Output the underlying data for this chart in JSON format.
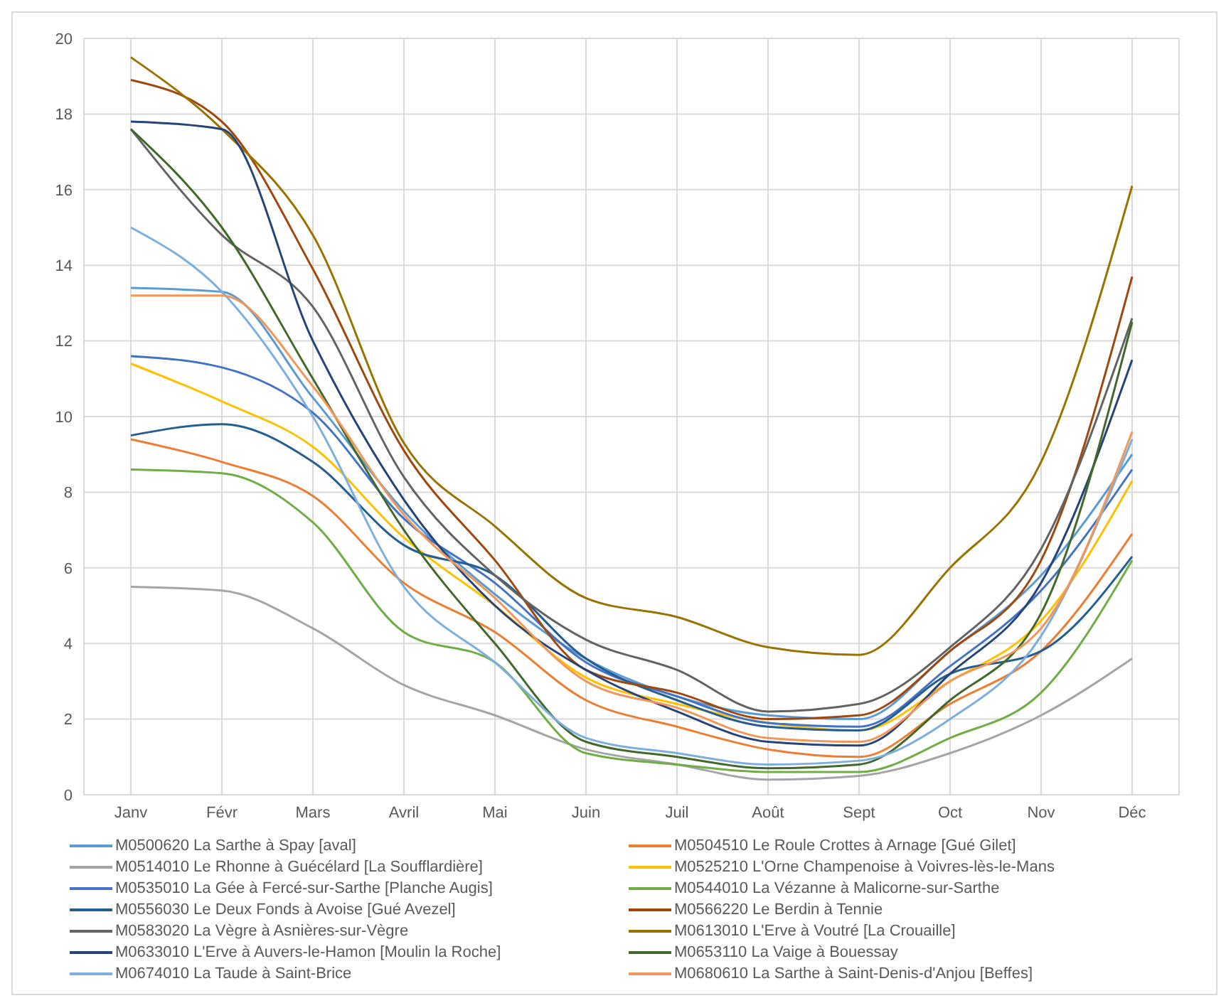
{
  "chart_data": {
    "type": "line",
    "categories": [
      "Janv",
      "Févr",
      "Mars",
      "Avril",
      "Mai",
      "Juin",
      "Juil",
      "Août",
      "Sept",
      "Oct",
      "Nov",
      "Déc"
    ],
    "ylim": [
      0,
      20
    ],
    "yticks": [
      0,
      2,
      4,
      6,
      8,
      10,
      12,
      14,
      16,
      18,
      20
    ],
    "grid": true,
    "legend": "bottom",
    "marker": "none",
    "line_style": "solid",
    "series": [
      {
        "name": "M0500620 La Sarthe à Spay [aval]",
        "color": "#5b9bd5",
        "values": [
          13.4,
          13.3,
          10.5,
          7.5,
          5.3,
          3.6,
          2.6,
          2.1,
          2.0,
          3.8,
          5.8,
          9.0
        ]
      },
      {
        "name": "M0504510 Le Roule Crottes à Arnage [Gué Gilet]",
        "color": "#ed7d31",
        "values": [
          9.4,
          8.8,
          7.9,
          5.6,
          4.3,
          2.5,
          1.8,
          1.2,
          1.0,
          2.4,
          3.8,
          6.9
        ]
      },
      {
        "name": "M0514010 Le Rhonne à Guécélard [La Soufflardière]",
        "color": "#a5a5a5",
        "values": [
          5.5,
          5.4,
          4.4,
          2.9,
          2.1,
          1.2,
          0.8,
          0.4,
          0.5,
          1.1,
          2.1,
          3.6
        ]
      },
      {
        "name": "M0525210 L'Orne Champenoise à Voivres-lès-le-Mans",
        "color": "#ffc000",
        "values": [
          11.4,
          10.4,
          9.2,
          6.8,
          5.0,
          3.1,
          2.4,
          1.9,
          1.7,
          3.0,
          4.6,
          8.3
        ]
      },
      {
        "name": "M0535010 La Gée à Fercé-sur-Sarthe [Planche Augis]",
        "color": "#4472c4",
        "values": [
          11.6,
          11.3,
          10.1,
          7.3,
          5.6,
          3.5,
          2.6,
          1.9,
          1.8,
          3.4,
          5.4,
          8.6
        ]
      },
      {
        "name": "M0544010 La Vézanne à Malicorne-sur-Sarthe",
        "color": "#70ad47",
        "values": [
          8.6,
          8.5,
          7.2,
          4.3,
          3.5,
          1.1,
          0.8,
          0.6,
          0.6,
          1.5,
          2.7,
          6.2
        ]
      },
      {
        "name": "M0556030 Le Deux Fonds à Avoise [Gué Avezel]",
        "color": "#255e91",
        "values": [
          9.5,
          9.8,
          8.8,
          6.6,
          5.8,
          3.6,
          2.5,
          1.8,
          1.7,
          3.2,
          3.8,
          6.3
        ]
      },
      {
        "name": "M0566220 Le Berdin à Tennie",
        "color": "#9e480e",
        "values": [
          18.9,
          17.8,
          13.9,
          9.1,
          6.2,
          3.3,
          2.7,
          2.0,
          2.1,
          3.8,
          6.2,
          13.7
        ]
      },
      {
        "name": "M0583020 La Vègre à Asnières-sur-Vègre",
        "color": "#636363",
        "values": [
          17.6,
          14.8,
          12.9,
          8.4,
          5.8,
          4.1,
          3.3,
          2.2,
          2.4,
          3.9,
          6.5,
          12.6
        ]
      },
      {
        "name": "M0613010 L'Erve à Voutré [La Crouaille]",
        "color": "#997300",
        "values": [
          19.5,
          17.6,
          14.8,
          9.3,
          7.1,
          5.2,
          4.7,
          3.9,
          3.7,
          6.0,
          8.8,
          16.1
        ]
      },
      {
        "name": "M0633010 L'Erve à Auvers-le-Hamon [Moulin la Roche]",
        "color": "#264478",
        "values": [
          17.8,
          17.6,
          12.0,
          7.8,
          5.0,
          3.3,
          2.2,
          1.4,
          1.3,
          3.2,
          5.6,
          11.5
        ]
      },
      {
        "name": "M0653110 La Vaige à Bouessay",
        "color": "#43682b",
        "values": [
          17.6,
          15.0,
          11.0,
          7.0,
          4.0,
          1.4,
          1.0,
          0.7,
          0.8,
          2.5,
          4.8,
          12.5
        ]
      },
      {
        "name": "M0674010 La Taude à Saint-Brice",
        "color": "#7cafdd",
        "values": [
          15.0,
          13.3,
          10.0,
          5.5,
          3.5,
          1.5,
          1.1,
          0.8,
          0.9,
          2.0,
          4.2,
          9.4
        ]
      },
      {
        "name": "M0680610 La Sarthe à Saint-Denis-d'Anjou [Beffes]",
        "color": "#f1975a",
        "values": [
          13.2,
          13.2,
          10.8,
          7.4,
          5.2,
          3.0,
          2.3,
          1.5,
          1.4,
          3.0,
          4.4,
          9.6
        ]
      }
    ]
  }
}
